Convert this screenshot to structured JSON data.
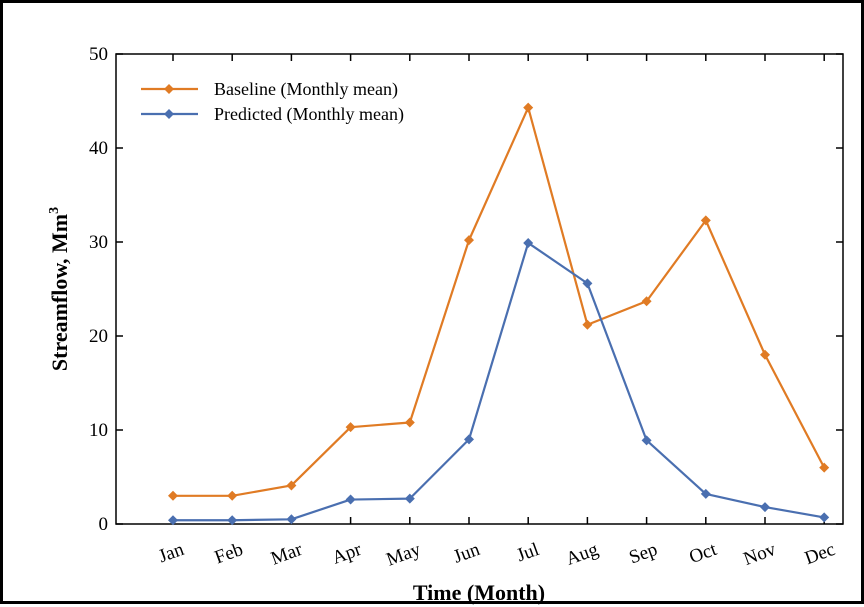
{
  "chart_data": {
    "type": "line",
    "categories": [
      "Jan",
      "Feb",
      "Mar",
      "Apr",
      "May",
      "Jun",
      "Jul",
      "Aug",
      "Sep",
      "Oct",
      "Nov",
      "Dec"
    ],
    "series": [
      {
        "name": "Baseline (Monthly mean)",
        "color": "#e07b24",
        "values": [
          3.0,
          3.0,
          4.1,
          10.3,
          10.8,
          30.2,
          44.3,
          21.2,
          23.7,
          32.3,
          18.0,
          6.0
        ]
      },
      {
        "name": "Predicted (Monthly mean)",
        "color": "#4a6fb0",
        "values": [
          0.4,
          0.4,
          0.5,
          2.6,
          2.7,
          9.0,
          29.9,
          25.6,
          8.9,
          3.2,
          1.8,
          0.7
        ]
      }
    ],
    "xlabel": "Time (Month)",
    "ylabel": "Streamflow, Mm",
    "ylabel_superscript": "3",
    "ylim": [
      0,
      50
    ],
    "yticks": [
      "0",
      "10",
      "20",
      "30",
      "40",
      "50"
    ],
    "marker": "diamond",
    "legend_position": "top-left",
    "grid": false
  }
}
